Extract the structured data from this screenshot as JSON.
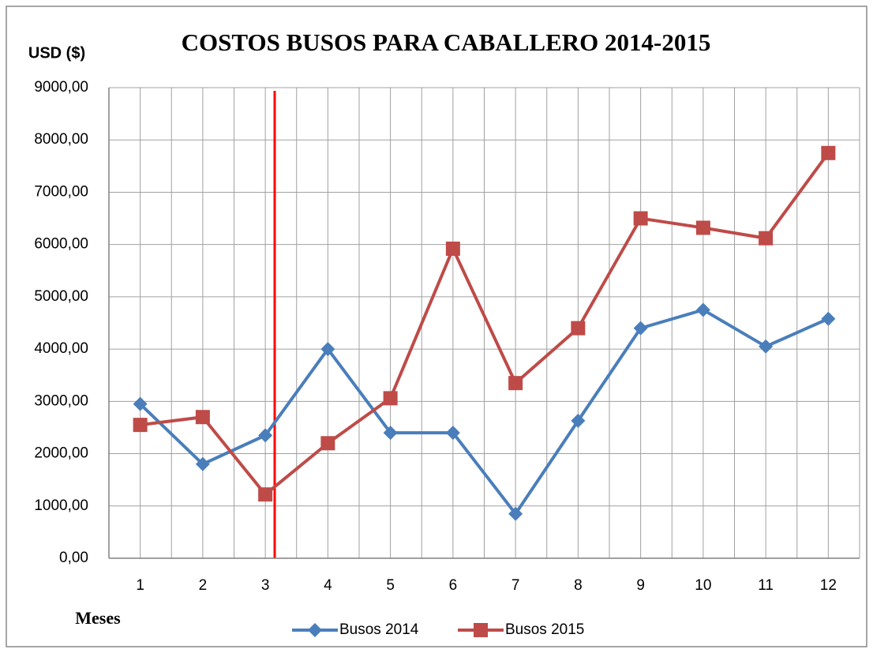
{
  "chart_data": {
    "type": "line",
    "title": "COSTOS BUSOS PARA CABALLERO 2014-2015",
    "y_label": "USD ($)",
    "x_label": "Meses",
    "categories": [
      "1",
      "2",
      "3",
      "4",
      "5",
      "6",
      "7",
      "8",
      "9",
      "10",
      "11",
      "12"
    ],
    "series": [
      {
        "name": "Busos 2014",
        "color": "#4a7ebb",
        "marker": "diamond",
        "values": [
          2950,
          1800,
          2350,
          4000,
          2400,
          2400,
          850,
          2630,
          4400,
          4750,
          4050,
          4580
        ]
      },
      {
        "name": "Busos 2015",
        "color": "#be4b48",
        "marker": "square",
        "values": [
          2550,
          2700,
          1220,
          2200,
          3060,
          5920,
          3350,
          4400,
          6500,
          6320,
          6120,
          7750
        ]
      }
    ],
    "ylim": [
      0,
      9000
    ],
    "yticks": [
      {
        "value": 0,
        "label": "0,00"
      },
      {
        "value": 1000,
        "label": "1000,00"
      },
      {
        "value": 2000,
        "label": "2000,00"
      },
      {
        "value": 3000,
        "label": "3000,00"
      },
      {
        "value": 4000,
        "label": "4000,00"
      },
      {
        "value": 5000,
        "label": "5000,00"
      },
      {
        "value": 6000,
        "label": "6000,00"
      },
      {
        "value": 7000,
        "label": "7000,00"
      },
      {
        "value": 8000,
        "label": "8000,00"
      },
      {
        "value": 9000,
        "label": "9000,00"
      }
    ],
    "grid": true,
    "legend": "bottom"
  }
}
